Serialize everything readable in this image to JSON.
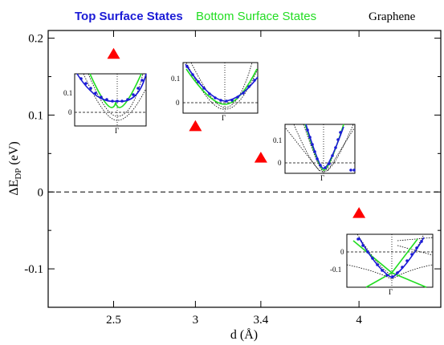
{
  "chart_data": {
    "type": "scatter",
    "title": "",
    "xlabel": "d (Å)",
    "ylabel": "ΔE",
    "ylabel_sub": "DP",
    "ylabel_unit": " (eV)",
    "xlim": [
      2.1,
      4.5
    ],
    "ylim": [
      -0.15,
      0.21
    ],
    "xticks": [
      2.5,
      3,
      3.4,
      4
    ],
    "xtick_labels": [
      "2.5",
      "3",
      "3.4",
      "4"
    ],
    "yticks": [
      -0.1,
      0,
      0.1,
      0.2
    ],
    "ytick_labels": [
      "-0.1",
      "0",
      "0.1",
      "0.2"
    ],
    "reference_line": {
      "y": 0,
      "style": "dashed"
    },
    "series": [
      {
        "x": [
          2.5,
          3.0,
          3.4,
          4.0
        ],
        "values": [
          0.179,
          0.085,
          0.044,
          -0.028
        ],
        "marker": "triangle",
        "color": "#ff0000"
      }
    ],
    "legend": {
      "placement": "top",
      "entries": [
        {
          "label": "Top Surface States",
          "color": "#1a1ad6"
        },
        {
          "label": "Bottom Surface States",
          "color": "#22dd22"
        },
        {
          "label": "Graphene",
          "color": "#000000"
        }
      ]
    },
    "insets": [
      {
        "yticks": [
          "0.1",
          "0"
        ],
        "xtick": "Γ"
      },
      {
        "yticks": [
          "0.1",
          "0"
        ],
        "xtick": "Γ"
      },
      {
        "yticks": [
          "0.1",
          "0"
        ],
        "xtick": "Γ"
      },
      {
        "yticks": [
          "0",
          "-0.1"
        ],
        "xtick": "Γ"
      }
    ],
    "grid": false
  }
}
